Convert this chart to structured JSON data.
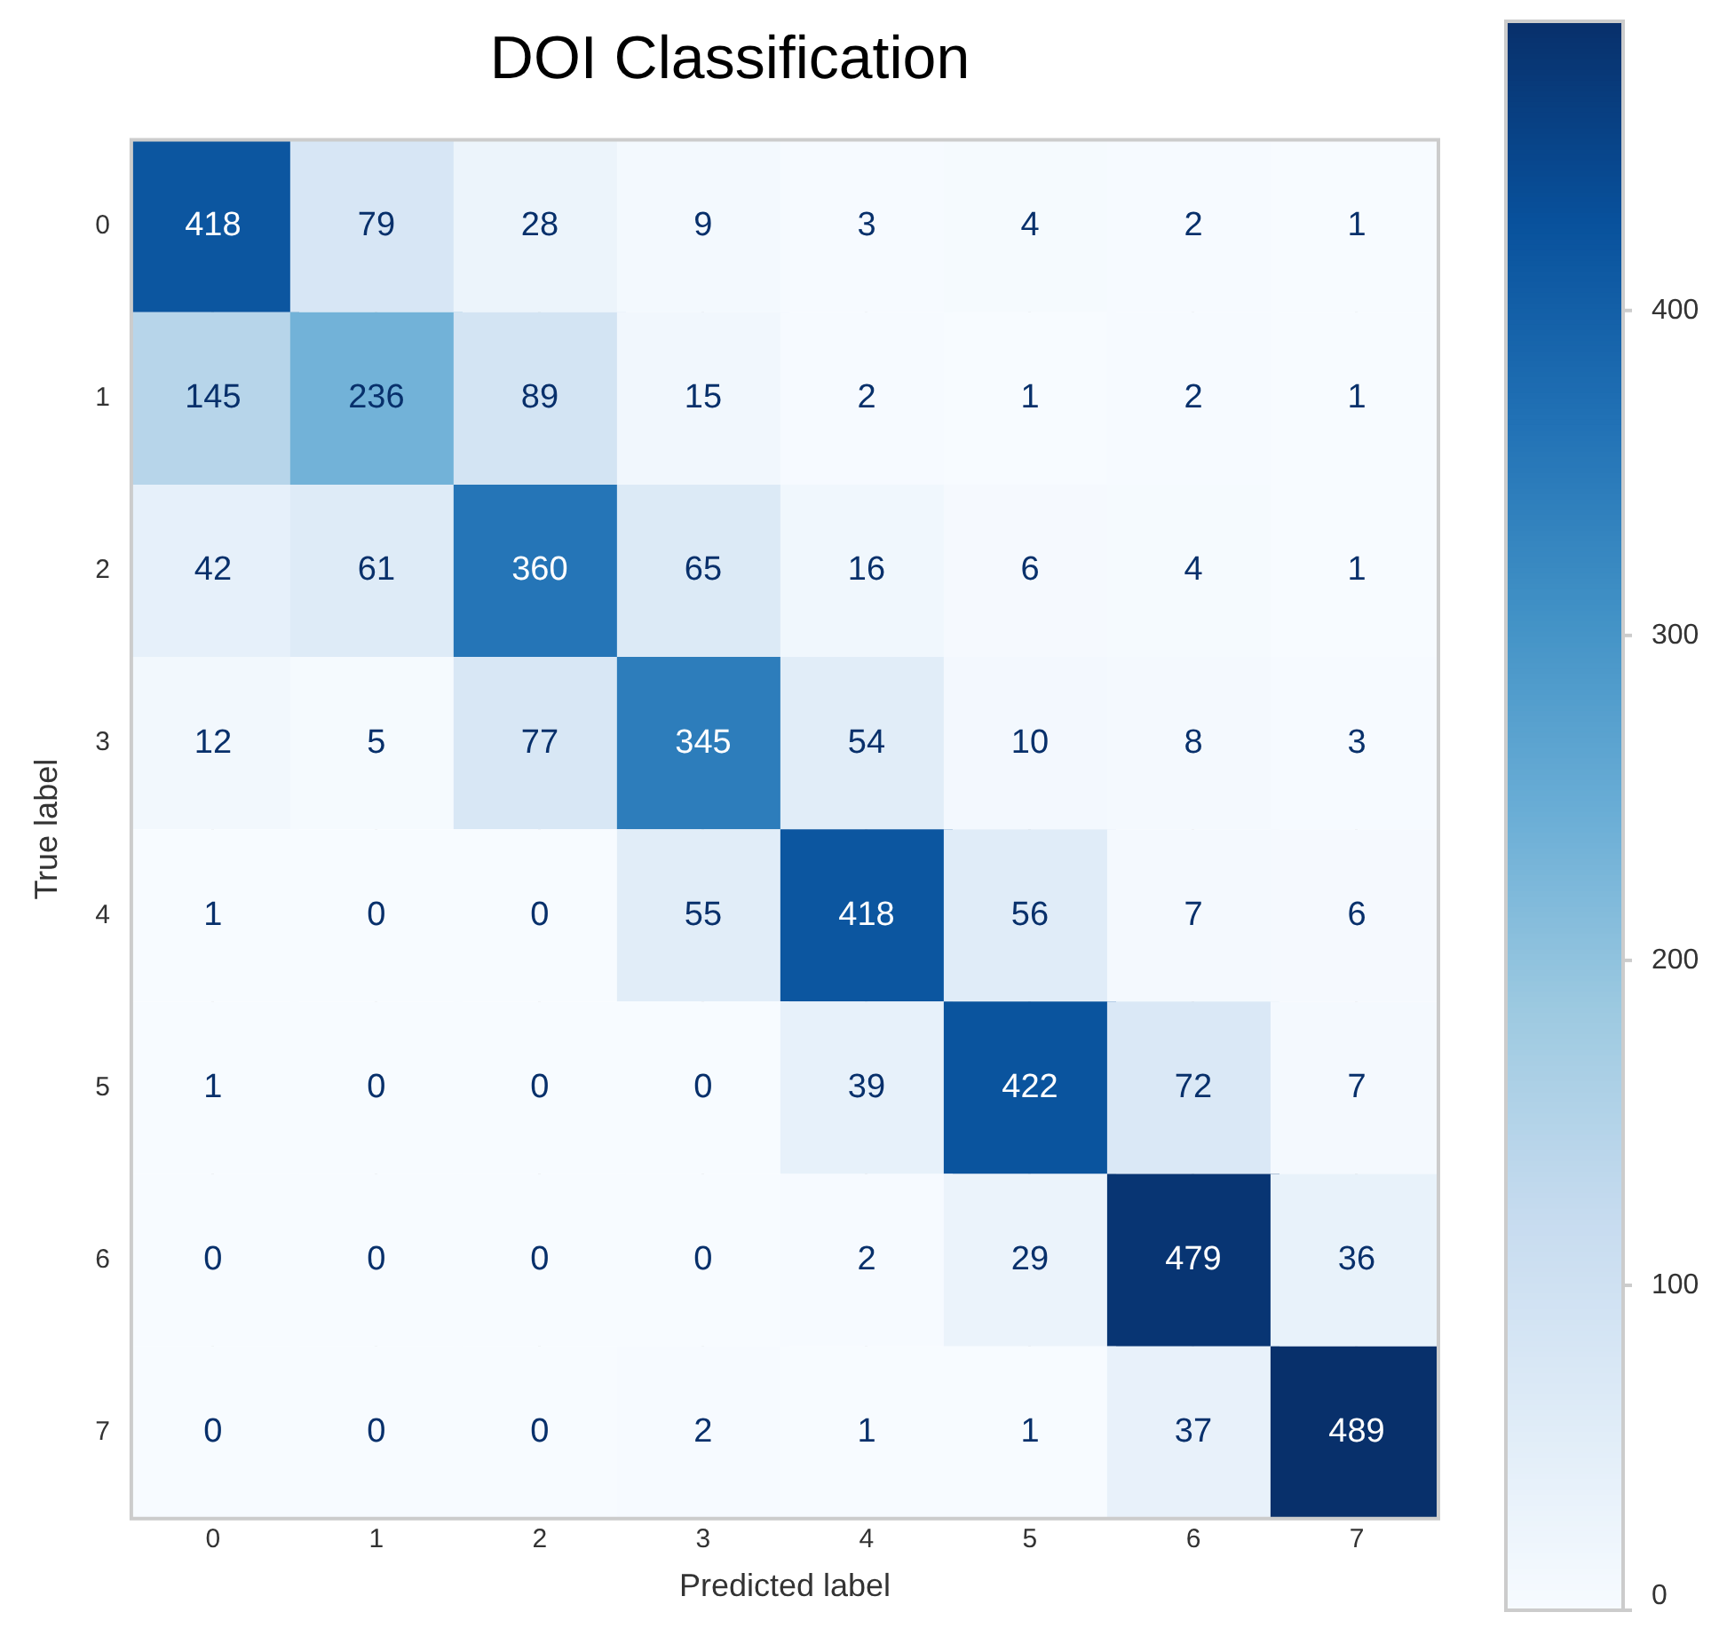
{
  "chart_data": {
    "type": "heatmap",
    "title": "DOI Classification",
    "xlabel": "Predicted label",
    "ylabel": "True label",
    "categories": [
      "0",
      "1",
      "2",
      "3",
      "4",
      "5",
      "6",
      "7"
    ],
    "y_categories": [
      "0",
      "1",
      "2",
      "3",
      "4",
      "5",
      "6",
      "7"
    ],
    "cells": [
      [
        418,
        79,
        28,
        9,
        3,
        4,
        2,
        1
      ],
      [
        145,
        236,
        89,
        15,
        2,
        1,
        2,
        1
      ],
      [
        42,
        61,
        360,
        65,
        16,
        6,
        4,
        1
      ],
      [
        12,
        5,
        77,
        345,
        54,
        10,
        8,
        3
      ],
      [
        1,
        0,
        0,
        55,
        418,
        56,
        7,
        6
      ],
      [
        1,
        0,
        0,
        0,
        39,
        422,
        72,
        7
      ],
      [
        0,
        0,
        0,
        0,
        2,
        29,
        479,
        36
      ],
      [
        0,
        0,
        0,
        2,
        1,
        1,
        37,
        489
      ]
    ],
    "clim": [
      0,
      489
    ],
    "cticks": [
      0,
      100,
      200,
      300,
      400
    ],
    "data_labels": true,
    "grid": true
  }
}
